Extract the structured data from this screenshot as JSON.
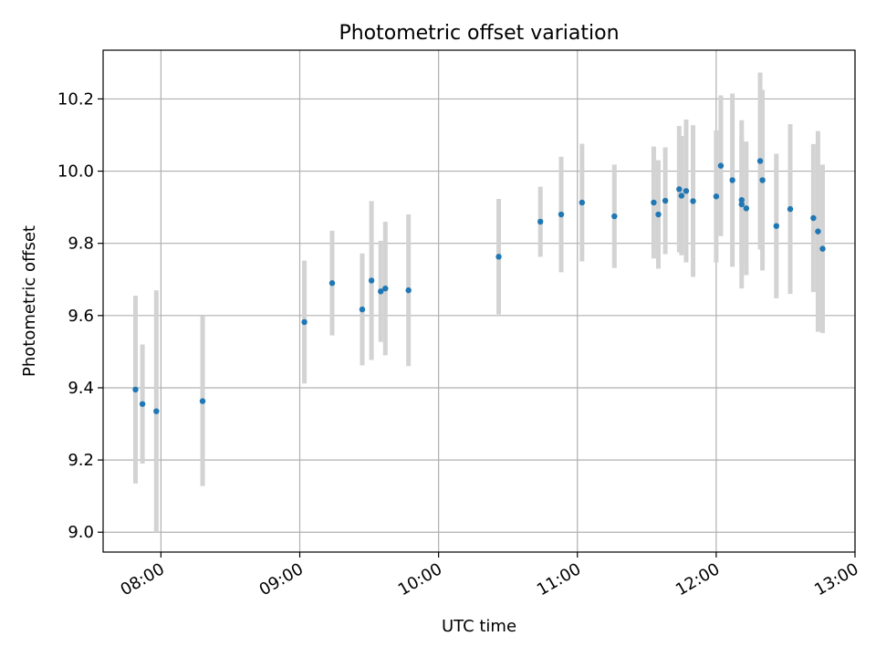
{
  "chart_data": {
    "type": "scatter",
    "title": "Photometric offset variation",
    "xlabel": "UTC time",
    "ylabel": "Photometric offset",
    "x_ticks": [
      "08:00",
      "09:00",
      "10:00",
      "11:00",
      "12:00",
      "13:00"
    ],
    "y_ticks": [
      "9.0",
      "9.2",
      "9.4",
      "9.6",
      "9.8",
      "10.0",
      "10.2"
    ],
    "xlim": [
      "07:35",
      "13:00"
    ],
    "ylim": [
      8.945,
      10.335
    ],
    "grid": true,
    "colors": {
      "point": "#1f77b4",
      "errorbar": "#d3d3d3",
      "grid": "#b0b0b0"
    },
    "points": [
      {
        "x": "07:49",
        "y": 9.395,
        "err": 0.26
      },
      {
        "x": "07:52",
        "y": 9.355,
        "err": 0.165
      },
      {
        "x": "07:58",
        "y": 9.335,
        "err": 0.335
      },
      {
        "x": "08:18",
        "y": 9.363,
        "err": 0.235
      },
      {
        "x": "09:02",
        "y": 9.582,
        "err": 0.17
      },
      {
        "x": "09:14",
        "y": 9.69,
        "err": 0.145
      },
      {
        "x": "09:27",
        "y": 9.617,
        "err": 0.155
      },
      {
        "x": "09:31",
        "y": 9.697,
        "err": 0.22
      },
      {
        "x": "09:35",
        "y": 9.667,
        "err": 0.14
      },
      {
        "x": "09:37",
        "y": 9.675,
        "err": 0.185
      },
      {
        "x": "09:47",
        "y": 9.67,
        "err": 0.21
      },
      {
        "x": "10:26",
        "y": 9.763,
        "err": 0.16
      },
      {
        "x": "10:44",
        "y": 9.86,
        "err": 0.097
      },
      {
        "x": "10:53",
        "y": 9.88,
        "err": 0.16
      },
      {
        "x": "11:02",
        "y": 9.913,
        "err": 0.163
      },
      {
        "x": "11:16",
        "y": 9.875,
        "err": 0.143
      },
      {
        "x": "11:33",
        "y": 9.913,
        "err": 0.155
      },
      {
        "x": "11:35",
        "y": 9.88,
        "err": 0.15
      },
      {
        "x": "11:38",
        "y": 9.918,
        "err": 0.148
      },
      {
        "x": "11:44",
        "y": 9.95,
        "err": 0.175
      },
      {
        "x": "11:45",
        "y": 9.932,
        "err": 0.165
      },
      {
        "x": "11:47",
        "y": 9.945,
        "err": 0.198
      },
      {
        "x": "11:50",
        "y": 9.917,
        "err": 0.21
      },
      {
        "x": "12:00",
        "y": 9.93,
        "err": 0.183
      },
      {
        "x": "12:02",
        "y": 10.015,
        "err": 0.195
      },
      {
        "x": "12:07",
        "y": 9.975,
        "err": 0.24
      },
      {
        "x": "12:11",
        "y": 9.92,
        "err": 0.18
      },
      {
        "x": "12:11",
        "y": 9.908,
        "err": 0.233
      },
      {
        "x": "12:13",
        "y": 9.897,
        "err": 0.185
      },
      {
        "x": "12:19",
        "y": 10.028,
        "err": 0.245
      },
      {
        "x": "12:20",
        "y": 9.975,
        "err": 0.25
      },
      {
        "x": "12:26",
        "y": 9.848,
        "err": 0.2
      },
      {
        "x": "12:32",
        "y": 9.895,
        "err": 0.235
      },
      {
        "x": "12:42",
        "y": 9.87,
        "err": 0.205
      },
      {
        "x": "12:44",
        "y": 9.833,
        "err": 0.278
      },
      {
        "x": "12:46",
        "y": 9.785,
        "err": 0.233
      }
    ]
  }
}
